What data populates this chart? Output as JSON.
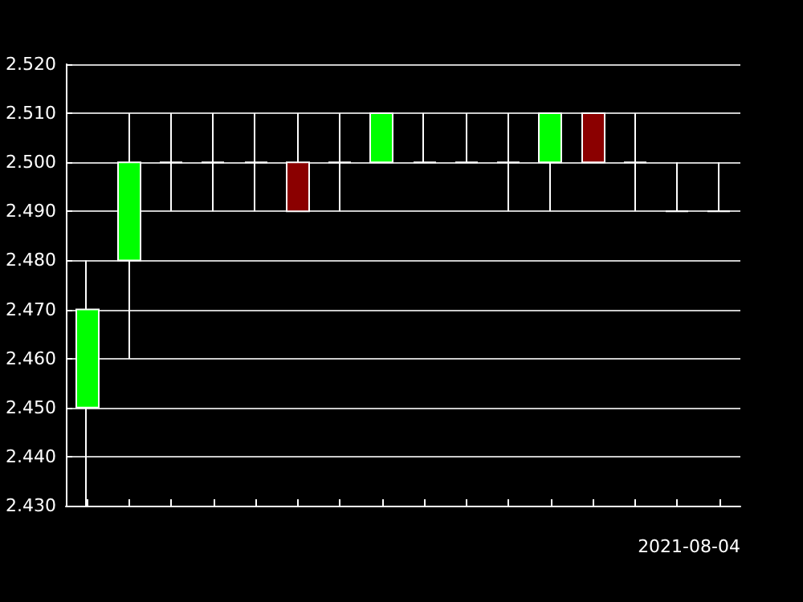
{
  "chart_data": {
    "type": "candlestick",
    "xlabel": "2021-08-04",
    "categories": [
      null,
      null,
      null,
      null,
      null,
      null,
      null,
      null,
      null,
      null,
      null,
      null,
      null,
      null,
      null,
      null
    ],
    "ohlc": [
      [
        2.45,
        2.48,
        2.43,
        2.47
      ],
      [
        2.48,
        2.51,
        2.46,
        2.5
      ],
      [
        2.5,
        2.51,
        2.49,
        2.5
      ],
      [
        2.5,
        2.51,
        2.49,
        2.5
      ],
      [
        2.5,
        2.51,
        2.49,
        2.5
      ],
      [
        2.5,
        2.51,
        2.49,
        2.49
      ],
      [
        2.5,
        2.51,
        2.49,
        2.5
      ],
      [
        2.5,
        2.51,
        2.5,
        2.51
      ],
      [
        2.5,
        2.51,
        2.5,
        2.5
      ],
      [
        2.5,
        2.51,
        2.5,
        2.5
      ],
      [
        2.5,
        2.51,
        2.49,
        2.5
      ],
      [
        2.5,
        2.51,
        2.49,
        2.51
      ],
      [
        2.51,
        2.51,
        2.5,
        2.5
      ],
      [
        2.5,
        2.51,
        2.49,
        2.5
      ],
      [
        2.49,
        2.5,
        2.49,
        2.49
      ],
      [
        2.49,
        2.5,
        2.49,
        2.49
      ]
    ],
    "colors": [
      "#00ff00",
      "#00ff00",
      "#ffffff",
      "#ffffff",
      "#ffffff",
      "#8b0000",
      "#ffffff",
      "#00ff00",
      "#ffffff",
      "#ffffff",
      "#ffffff",
      "#00ff00",
      "#8b0000",
      "#ffffff",
      "#ffffff",
      "#ffffff"
    ],
    "ylim": [
      2.43,
      2.52
    ],
    "yticks": [
      {
        "value": 2.43,
        "label": "2.430"
      },
      {
        "value": 2.44,
        "label": "2.440"
      },
      {
        "value": 2.45,
        "label": "2.450"
      },
      {
        "value": 2.46,
        "label": "2.460"
      },
      {
        "value": 2.47,
        "label": "2.470"
      },
      {
        "value": 2.48,
        "label": "2.480"
      },
      {
        "value": 2.49,
        "label": "2.490"
      },
      {
        "value": 2.5,
        "label": "2.500"
      },
      {
        "value": 2.51,
        "label": "2.510"
      },
      {
        "value": 2.52,
        "label": "2.520"
      }
    ],
    "grid": "y"
  }
}
